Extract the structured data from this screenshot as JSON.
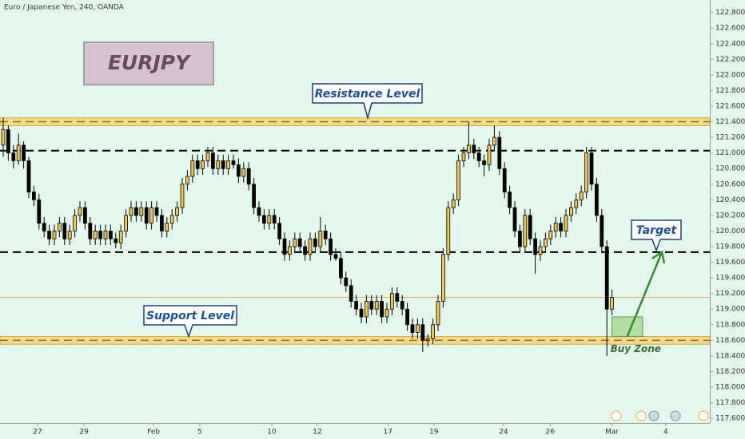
{
  "chart_data": {
    "type": "candlestick",
    "title": "Euro / Japanese Yen, 240, OANDA",
    "symbol_label": "EURJPY",
    "background": "#e4f7ed",
    "up_color": "#f2c84b",
    "down_color": "#000000",
    "grid": false,
    "xlim": [
      -0.625,
      138.125
    ],
    "ylim": [
      117.54,
      122.96
    ],
    "xticks": [
      {
        "value": 6.7,
        "label": "27"
      },
      {
        "value": 15.8,
        "label": "29"
      },
      {
        "value": 29.4,
        "label": "Feb"
      },
      {
        "value": 38.4,
        "label": "5"
      },
      {
        "value": 52.5,
        "label": "10"
      },
      {
        "value": 61.4,
        "label": "12"
      },
      {
        "value": 75.2,
        "label": "17"
      },
      {
        "value": 84.2,
        "label": "19"
      },
      {
        "value": 97.8,
        "label": "24"
      },
      {
        "value": 106.9,
        "label": "26"
      },
      {
        "value": 119,
        "label": "Mar"
      },
      {
        "value": 129.5,
        "label": "4"
      }
    ],
    "yticks": [
      {
        "value": 117.6,
        "label": "117.600"
      },
      {
        "value": 117.8,
        "label": "117.800"
      },
      {
        "value": 118,
        "label": "118.000"
      },
      {
        "value": 118.2,
        "label": "118.200"
      },
      {
        "value": 118.4,
        "label": "118.400"
      },
      {
        "value": 118.6,
        "label": "118.600"
      },
      {
        "value": 118.8,
        "label": "118.800"
      },
      {
        "value": 119,
        "label": "119.000"
      },
      {
        "value": 119.2,
        "label": "119.200"
      },
      {
        "value": 119.4,
        "label": "119.400"
      },
      {
        "value": 119.6,
        "label": "119.600"
      },
      {
        "value": 119.8,
        "label": "119.800"
      },
      {
        "value": 120,
        "label": "120.000"
      },
      {
        "value": 120.2,
        "label": "120.200"
      },
      {
        "value": 120.4,
        "label": "120.400"
      },
      {
        "value": 120.6,
        "label": "120.600"
      },
      {
        "value": 120.8,
        "label": "120.800"
      },
      {
        "value": 121,
        "label": "121.000"
      },
      {
        "value": 121.2,
        "label": "121.200"
      },
      {
        "value": 121.4,
        "label": "121.400"
      },
      {
        "value": 121.6,
        "label": "121.600"
      },
      {
        "value": 121.8,
        "label": "121.800"
      },
      {
        "value": 122,
        "label": "122.000"
      },
      {
        "value": 122.2,
        "label": "122.200"
      },
      {
        "value": 122.4,
        "label": "122.400"
      },
      {
        "value": 122.6,
        "label": "122.600"
      },
      {
        "value": 122.8,
        "label": "122.800"
      }
    ],
    "candles": [
      [
        121.1,
        121.45,
        120.95,
        121.3
      ],
      [
        121.3,
        121.35,
        120.9,
        121
      ],
      [
        121,
        121.1,
        120.8,
        120.9
      ],
      [
        120.9,
        121.25,
        120.85,
        121.1
      ],
      [
        121.1,
        121.15,
        120.8,
        120.9
      ],
      [
        120.9,
        120.95,
        120.42,
        120.5
      ],
      [
        120.5,
        120.58,
        120.32,
        120.4
      ],
      [
        120.4,
        120.48,
        120.02,
        120.1
      ],
      [
        120.1,
        120.18,
        119.92,
        120
      ],
      [
        120,
        120.08,
        119.82,
        119.9
      ],
      [
        119.9,
        120.08,
        119.82,
        120
      ],
      [
        120,
        120.18,
        119.92,
        120.1
      ],
      [
        120.1,
        120.18,
        119.82,
        119.9
      ],
      [
        119.9,
        120.08,
        119.82,
        120
      ],
      [
        120,
        120.28,
        119.92,
        120.2
      ],
      [
        120.2,
        120.38,
        120.12,
        120.3
      ],
      [
        120.3,
        120.38,
        120.02,
        120.1
      ],
      [
        120.1,
        120.18,
        119.82,
        119.9
      ],
      [
        119.9,
        120.08,
        119.82,
        120
      ],
      [
        120,
        120.08,
        119.82,
        119.9
      ],
      [
        119.9,
        120.08,
        119.82,
        120
      ],
      [
        120,
        120.08,
        119.82,
        119.9
      ],
      [
        119.9,
        119.98,
        119.78,
        119.85
      ],
      [
        119.85,
        120.08,
        119.77,
        120
      ],
      [
        120,
        120.28,
        119.92,
        120.2
      ],
      [
        120.2,
        120.38,
        120.12,
        120.3
      ],
      [
        120.3,
        120.38,
        120.12,
        120.2
      ],
      [
        120.2,
        120.38,
        120.12,
        120.3
      ],
      [
        120.3,
        120.38,
        120.02,
        120.1
      ],
      [
        120.1,
        120.38,
        120.02,
        120.3
      ],
      [
        120.3,
        120.38,
        120.12,
        120.2
      ],
      [
        120.2,
        120.28,
        119.92,
        120
      ],
      [
        120,
        120.18,
        119.92,
        120.1
      ],
      [
        120.1,
        120.28,
        120.02,
        120.2
      ],
      [
        120.2,
        120.38,
        120.12,
        120.3
      ],
      [
        120.3,
        120.68,
        120.22,
        120.6
      ],
      [
        120.6,
        120.78,
        120.52,
        120.7
      ],
      [
        120.7,
        120.98,
        120.62,
        120.9
      ],
      [
        120.9,
        120.98,
        120.72,
        120.8
      ],
      [
        120.8,
        120.98,
        120.72,
        120.9
      ],
      [
        120.9,
        121.08,
        120.82,
        121
      ],
      [
        121,
        121.08,
        120.72,
        120.8
      ],
      [
        120.8,
        120.98,
        120.72,
        120.9
      ],
      [
        120.9,
        120.98,
        120.72,
        120.8
      ],
      [
        120.8,
        120.98,
        120.72,
        120.9
      ],
      [
        120.9,
        120.98,
        120.8,
        120.85
      ],
      [
        120.85,
        120.93,
        120.62,
        120.7
      ],
      [
        120.7,
        120.88,
        120.62,
        120.8
      ],
      [
        120.8,
        120.88,
        120.52,
        120.6
      ],
      [
        120.6,
        120.68,
        120.22,
        120.3
      ],
      [
        120.3,
        120.38,
        120.12,
        120.2
      ],
      [
        120.2,
        120.28,
        120.02,
        120.1
      ],
      [
        120.1,
        120.28,
        120.02,
        120.2
      ],
      [
        120.2,
        120.28,
        120.02,
        120.1
      ],
      [
        120.1,
        120.18,
        119.82,
        119.9
      ],
      [
        119.9,
        119.98,
        119.62,
        119.7
      ],
      [
        119.7,
        119.88,
        119.62,
        119.8
      ],
      [
        119.8,
        119.98,
        119.72,
        119.9
      ],
      [
        119.9,
        119.98,
        119.72,
        119.8
      ],
      [
        119.8,
        119.88,
        119.62,
        119.7
      ],
      [
        119.7,
        119.98,
        119.62,
        119.9
      ],
      [
        119.9,
        119.98,
        119.72,
        119.8
      ],
      [
        119.8,
        120.18,
        119.72,
        120
      ],
      [
        120,
        120.08,
        119.82,
        119.9
      ],
      [
        119.9,
        119.98,
        119.62,
        119.7
      ],
      [
        119.7,
        119.78,
        119.62,
        119.65
      ],
      [
        119.65,
        119.73,
        119.32,
        119.4
      ],
      [
        119.4,
        119.48,
        119.22,
        119.3
      ],
      [
        119.3,
        119.38,
        119.02,
        119.1
      ],
      [
        119.1,
        119.18,
        118.92,
        119
      ],
      [
        119,
        119.08,
        118.82,
        118.9
      ],
      [
        118.9,
        119.18,
        118.82,
        119.1
      ],
      [
        119.1,
        119.18,
        118.92,
        119
      ],
      [
        119,
        119.18,
        118.92,
        119.1
      ],
      [
        119.1,
        119.18,
        118.82,
        118.9
      ],
      [
        118.9,
        119.08,
        118.82,
        119
      ],
      [
        119,
        119.28,
        118.92,
        119.2
      ],
      [
        119.2,
        119.28,
        119.02,
        119.1
      ],
      [
        119.1,
        119.18,
        118.92,
        119
      ],
      [
        119,
        119.08,
        118.72,
        118.8
      ],
      [
        118.8,
        118.88,
        118.62,
        118.7
      ],
      [
        118.7,
        118.88,
        118.62,
        118.8
      ],
      [
        118.8,
        118.88,
        118.45,
        118.6
      ],
      [
        118.6,
        118.68,
        118.52,
        118.62
      ],
      [
        118.62,
        118.88,
        118.55,
        118.8
      ],
      [
        118.8,
        119.18,
        118.72,
        119.1
      ],
      [
        119.1,
        119.78,
        119.02,
        119.7
      ],
      [
        119.7,
        120.38,
        119.62,
        120.3
      ],
      [
        120.3,
        120.48,
        120.22,
        120.4
      ],
      [
        120.4,
        120.98,
        120.32,
        120.9
      ],
      [
        120.9,
        121.08,
        120.82,
        121
      ],
      [
        121,
        121.4,
        120.92,
        121.1
      ],
      [
        121.1,
        121.18,
        120.92,
        121
      ],
      [
        121,
        121.08,
        120.82,
        120.9
      ],
      [
        120.9,
        120.98,
        120.7,
        120.85
      ],
      [
        120.85,
        121.18,
        120.77,
        121.1
      ],
      [
        121.1,
        121.35,
        121.02,
        121.2
      ],
      [
        121.2,
        121.28,
        120.72,
        120.8
      ],
      [
        120.8,
        120.88,
        120.42,
        120.5
      ],
      [
        120.5,
        120.58,
        120.22,
        120.3
      ],
      [
        120.3,
        120.38,
        119.92,
        120
      ],
      [
        120,
        120.08,
        119.72,
        119.8
      ],
      [
        119.8,
        120.28,
        119.72,
        120.2
      ],
      [
        120.2,
        120.28,
        119.82,
        119.9
      ],
      [
        119.9,
        119.98,
        119.45,
        119.7
      ],
      [
        119.7,
        119.88,
        119.62,
        119.8
      ],
      [
        119.8,
        119.98,
        119.72,
        119.9
      ],
      [
        119.9,
        120.08,
        119.82,
        120
      ],
      [
        120,
        120.18,
        119.92,
        120.1
      ],
      [
        120.1,
        120.18,
        119.92,
        120
      ],
      [
        120,
        120.28,
        119.92,
        120.2
      ],
      [
        120.2,
        120.38,
        120.12,
        120.3
      ],
      [
        120.3,
        120.48,
        120.22,
        120.4
      ],
      [
        120.4,
        120.58,
        120.32,
        120.5
      ],
      [
        120.5,
        121.08,
        120.42,
        121
      ],
      [
        121,
        121.08,
        120.52,
        120.6
      ],
      [
        120.6,
        120.68,
        120.12,
        120.2
      ],
      [
        120.2,
        120.28,
        119.72,
        119.8
      ],
      [
        119.8,
        119.88,
        118.4,
        119
      ],
      [
        119,
        119.25,
        118.92,
        119.15
      ]
    ],
    "resistance": {
      "label": "Resistance Level",
      "zone": [
        121.35,
        121.45
      ],
      "line": 121.4
    },
    "support": {
      "label": "Support Level",
      "zone": [
        118.55,
        118.65
      ],
      "line": 118.6
    },
    "dashed_levels": [
      121.03,
      119.73
    ],
    "last_price": 119.15,
    "buy_zone": {
      "label": "Buy Zone",
      "x": [
        119,
        125
      ],
      "y": [
        118.65,
        118.9
      ]
    },
    "target": {
      "label": "Target",
      "value": 119.73
    }
  }
}
